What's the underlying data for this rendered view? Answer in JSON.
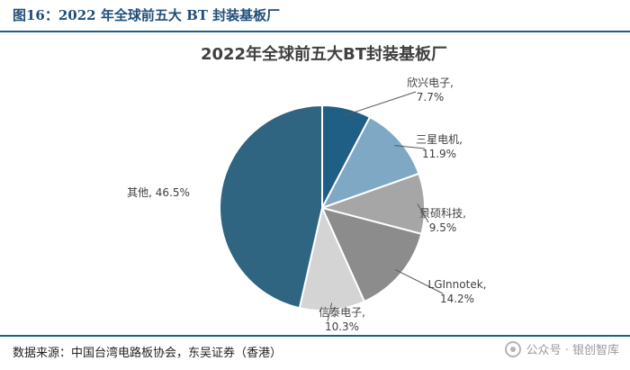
{
  "figure": {
    "label": "图16：2022 年全球前五大 BT 封装基板厂",
    "source": "数据来源：中国台湾电路板协会，东吴证券（香港）",
    "watermark": "公众号 · 银创智库"
  },
  "chart_data": {
    "type": "pie",
    "title": "2022年全球前五大BT封装基板厂",
    "slices": [
      {
        "label": "欣兴电子,",
        "value": 7.7,
        "value_label": "7.7%",
        "color": "#1f5f86"
      },
      {
        "label": "三星电机,",
        "value": 11.9,
        "value_label": "11.9%",
        "color": "#7fa8c4"
      },
      {
        "label": "景硕科技,",
        "value": 9.5,
        "value_label": "9.5%",
        "color": "#a6a6a6"
      },
      {
        "label": "LGInnotek,",
        "value": 14.2,
        "value_label": "14.2%",
        "color": "#8c8c8c"
      },
      {
        "label": "信泰电子,",
        "value": 10.3,
        "value_label": "10.3%",
        "color": "#d4d4d4"
      },
      {
        "label": "其他,",
        "value": 46.5,
        "value_label": "46.5%",
        "color": "#2f6580"
      }
    ]
  }
}
